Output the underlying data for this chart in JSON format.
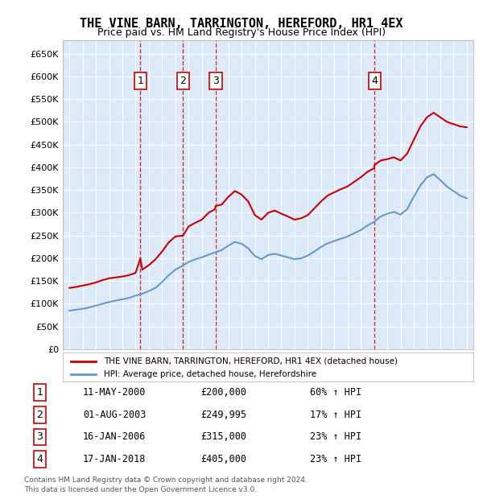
{
  "title": "THE VINE BARN, TARRINGTON, HEREFORD, HR1 4EX",
  "subtitle": "Price paid vs. HM Land Registry's House Price Index (HPI)",
  "footer": "Contains HM Land Registry data © Crown copyright and database right 2024.\nThis data is licensed under the Open Government Licence v3.0.",
  "legend_line1": "THE VINE BARN, TARRINGTON, HEREFORD, HR1 4EX (detached house)",
  "legend_line2": "HPI: Average price, detached house, Herefordshire",
  "transactions": [
    {
      "num": 1,
      "date": "11-MAY-2000",
      "price": 200000,
      "year": 2000.36,
      "hpi_pct": "60% ↑ HPI"
    },
    {
      "num": 2,
      "date": "01-AUG-2003",
      "price": 249995,
      "year": 2003.58,
      "hpi_pct": "17% ↑ HPI"
    },
    {
      "num": 3,
      "date": "16-JAN-2006",
      "price": 315000,
      "year": 2006.04,
      "hpi_pct": "23% ↑ HPI"
    },
    {
      "num": 4,
      "date": "17-JAN-2018",
      "price": 405000,
      "year": 2018.04,
      "hpi_pct": "23% ↑ HPI"
    }
  ],
  "ylim": [
    0,
    680000
  ],
  "yticks": [
    0,
    50000,
    100000,
    150000,
    200000,
    250000,
    300000,
    350000,
    400000,
    450000,
    500000,
    550000,
    600000,
    650000
  ],
  "xlim_start": 1994.5,
  "xlim_end": 2025.5,
  "background_color": "#dce9f8",
  "plot_bg_color": "#dce9f8",
  "red_line_color": "#cc0000",
  "blue_line_color": "#6699cc",
  "dashed_vline_color": "#cc0000",
  "grid_color": "#ffffff",
  "title_color": "#000000",
  "hpi_red_line": {
    "years": [
      1995,
      1995.5,
      1996,
      1996.5,
      1997,
      1997.5,
      1998,
      1998.5,
      1999,
      1999.5,
      2000,
      2000.36,
      2000.5,
      2001,
      2001.5,
      2002,
      2002.5,
      2003,
      2003.58,
      2004,
      2004.5,
      2005,
      2005.5,
      2006,
      2006.04,
      2006.5,
      2007,
      2007.5,
      2008,
      2008.5,
      2009,
      2009.5,
      2010,
      2010.5,
      2011,
      2011.5,
      2012,
      2012.5,
      2013,
      2013.5,
      2014,
      2014.5,
      2015,
      2015.5,
      2016,
      2016.5,
      2017,
      2017.5,
      2018,
      2018.04,
      2018.5,
      2019,
      2019.5,
      2020,
      2020.5,
      2021,
      2021.5,
      2022,
      2022.5,
      2023,
      2023.5,
      2024,
      2024.5,
      2025
    ],
    "values": [
      135000,
      137000,
      140000,
      143000,
      147000,
      152000,
      156000,
      158000,
      160000,
      163000,
      168000,
      200000,
      175000,
      185000,
      198000,
      215000,
      235000,
      248000,
      249995,
      270000,
      278000,
      285000,
      300000,
      308000,
      315000,
      318000,
      335000,
      348000,
      340000,
      325000,
      295000,
      285000,
      300000,
      305000,
      298000,
      292000,
      285000,
      288000,
      295000,
      310000,
      325000,
      338000,
      345000,
      352000,
      358000,
      368000,
      378000,
      390000,
      398000,
      405000,
      415000,
      418000,
      422000,
      415000,
      430000,
      460000,
      490000,
      510000,
      520000,
      510000,
      500000,
      495000,
      490000,
      488000
    ]
  },
  "hpi_blue_line": {
    "years": [
      1995,
      1995.5,
      1996,
      1996.5,
      1997,
      1997.5,
      1998,
      1998.5,
      1999,
      1999.5,
      2000,
      2000.5,
      2001,
      2001.5,
      2002,
      2002.5,
      2003,
      2003.5,
      2004,
      2004.5,
      2005,
      2005.5,
      2006,
      2006.5,
      2007,
      2007.5,
      2008,
      2008.5,
      2009,
      2009.5,
      2010,
      2010.5,
      2011,
      2011.5,
      2012,
      2012.5,
      2013,
      2013.5,
      2014,
      2014.5,
      2015,
      2015.5,
      2016,
      2016.5,
      2017,
      2017.5,
      2018,
      2018.5,
      2019,
      2019.5,
      2020,
      2020.5,
      2021,
      2021.5,
      2022,
      2022.5,
      2023,
      2023.5,
      2024,
      2024.5,
      2025
    ],
    "values": [
      85000,
      87000,
      89000,
      92000,
      96000,
      100000,
      104000,
      107000,
      110000,
      113000,
      118000,
      122000,
      128000,
      135000,
      148000,
      163000,
      175000,
      183000,
      192000,
      198000,
      202000,
      208000,
      213000,
      218000,
      228000,
      236000,
      232000,
      222000,
      205000,
      198000,
      207000,
      210000,
      206000,
      202000,
      198000,
      200000,
      206000,
      215000,
      225000,
      233000,
      238000,
      243000,
      248000,
      255000,
      262000,
      272000,
      280000,
      292000,
      298000,
      302000,
      296000,
      308000,
      335000,
      360000,
      378000,
      385000,
      372000,
      358000,
      348000,
      338000,
      332000
    ]
  }
}
